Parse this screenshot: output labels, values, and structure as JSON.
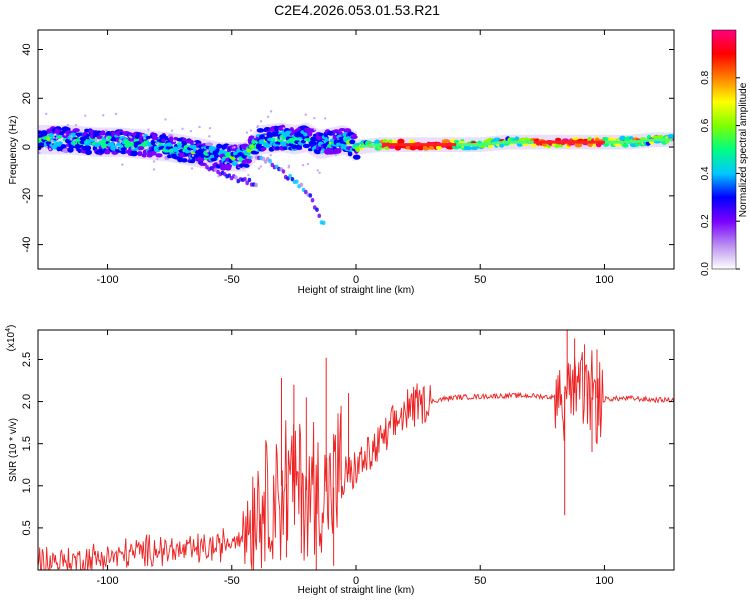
{
  "title": "C2E4.2026.053.01.53.R21",
  "chart_data": [
    {
      "type": "heatmap",
      "xlabel": "Height of straight line (km)",
      "ylabel": "Frequency (Hz)",
      "xlim": [
        -128,
        128
      ],
      "ylim": [
        -50,
        48
      ],
      "xticks": [
        -100,
        -50,
        0,
        50,
        100
      ],
      "yticks": [
        -40,
        -20,
        0,
        20,
        40
      ],
      "colorbar": {
        "label": "Normalized spectral amplitude",
        "range": [
          0,
          1
        ],
        "ticks": [
          "0.0",
          "0.2",
          "0.4",
          "0.6",
          "0.8"
        ],
        "colors": [
          "#ffffff",
          "#b98ef0",
          "#7a00ff",
          "#0000ff",
          "#00c8ff",
          "#00ff80",
          "#80ff00",
          "#ffff00",
          "#ff8000",
          "#ff0000",
          "#ff0080"
        ]
      },
      "ridge_centre_freq": [
        [
          -125,
          3
        ],
        [
          -115,
          3
        ],
        [
          -105,
          2
        ],
        [
          -95,
          2
        ],
        [
          -85,
          1
        ],
        [
          -75,
          0
        ],
        [
          -65,
          -2
        ],
        [
          -55,
          -4
        ],
        [
          -45,
          -4
        ],
        [
          -38,
          3
        ],
        [
          -30,
          4
        ],
        [
          -25,
          3
        ],
        [
          -20,
          4
        ],
        [
          -15,
          1
        ],
        [
          -10,
          2
        ],
        [
          -5,
          3
        ],
        [
          0,
          0
        ],
        [
          10,
          1
        ],
        [
          20,
          1
        ],
        [
          30,
          1
        ],
        [
          40,
          1
        ],
        [
          50,
          1
        ],
        [
          60,
          2
        ],
        [
          70,
          2
        ],
        [
          80,
          2
        ],
        [
          90,
          2
        ],
        [
          100,
          2
        ],
        [
          110,
          2
        ],
        [
          120,
          3
        ],
        [
          128,
          3
        ]
      ],
      "tail_branch": [
        [
          -40,
          -4
        ],
        [
          -35,
          -6
        ],
        [
          -30,
          -10
        ],
        [
          -25,
          -14
        ],
        [
          -20,
          -18
        ],
        [
          -16,
          -25
        ],
        [
          -13,
          -32
        ]
      ],
      "secondary_branch": [
        [
          -60,
          -8
        ],
        [
          -50,
          -12
        ],
        [
          -45,
          -14
        ],
        [
          -40,
          -15
        ]
      ]
    },
    {
      "type": "line",
      "xlabel": "Height of straight line (km)",
      "ylabel": "SNR (10 * v/v)",
      "y_scale_label": "(x10",
      "y_scale_exponent": "4",
      "xlim": [
        -128,
        128
      ],
      "ylim": [
        0,
        2.85
      ],
      "xticks": [
        -100,
        -50,
        0,
        50,
        100
      ],
      "yticks": [
        "0.5",
        "1.0",
        "1.5",
        "2.0",
        "2.5"
      ],
      "color": "#ee2222",
      "series": [
        {
          "name": "SNR",
          "x": [
            -128,
            -120,
            -110,
            -100,
            -90,
            -80,
            -70,
            -60,
            -55,
            -50,
            -45,
            -40,
            -35,
            -30,
            -25,
            -20,
            -15,
            -10,
            -5,
            0,
            5,
            10,
            15,
            20,
            25,
            30,
            35,
            40,
            50,
            60,
            70,
            75,
            80,
            83,
            85,
            88,
            90,
            95,
            100,
            110,
            120,
            128
          ],
          "y": [
            0.1,
            0.1,
            0.12,
            0.15,
            0.2,
            0.25,
            0.22,
            0.25,
            0.28,
            0.35,
            0.5,
            0.8,
            0.9,
            1.0,
            1.05,
            0.95,
            0.9,
            0.95,
            1.1,
            1.2,
            1.35,
            1.5,
            1.7,
            1.9,
            1.95,
            2.0,
            2.03,
            2.05,
            2.06,
            2.07,
            2.07,
            2.06,
            2.05,
            2.08,
            2.15,
            2.1,
            2.08,
            2.05,
            2.03,
            2.04,
            2.02,
            2.02
          ]
        }
      ],
      "spikes": [
        [
          -30,
          2.28
        ],
        [
          -28,
          0.15
        ],
        [
          -25,
          2.2
        ],
        [
          -22,
          0.2
        ],
        [
          -20,
          2.05
        ],
        [
          -16,
          0.0
        ],
        [
          -12,
          2.52
        ],
        [
          -9,
          0.05
        ],
        [
          -6,
          1.95
        ],
        [
          -3,
          2.1
        ],
        [
          84,
          0.65
        ],
        [
          85,
          2.85
        ],
        [
          88,
          2.75
        ],
        [
          92,
          2.68
        ],
        [
          95,
          1.4
        ],
        [
          97,
          2.62
        ]
      ]
    }
  ]
}
